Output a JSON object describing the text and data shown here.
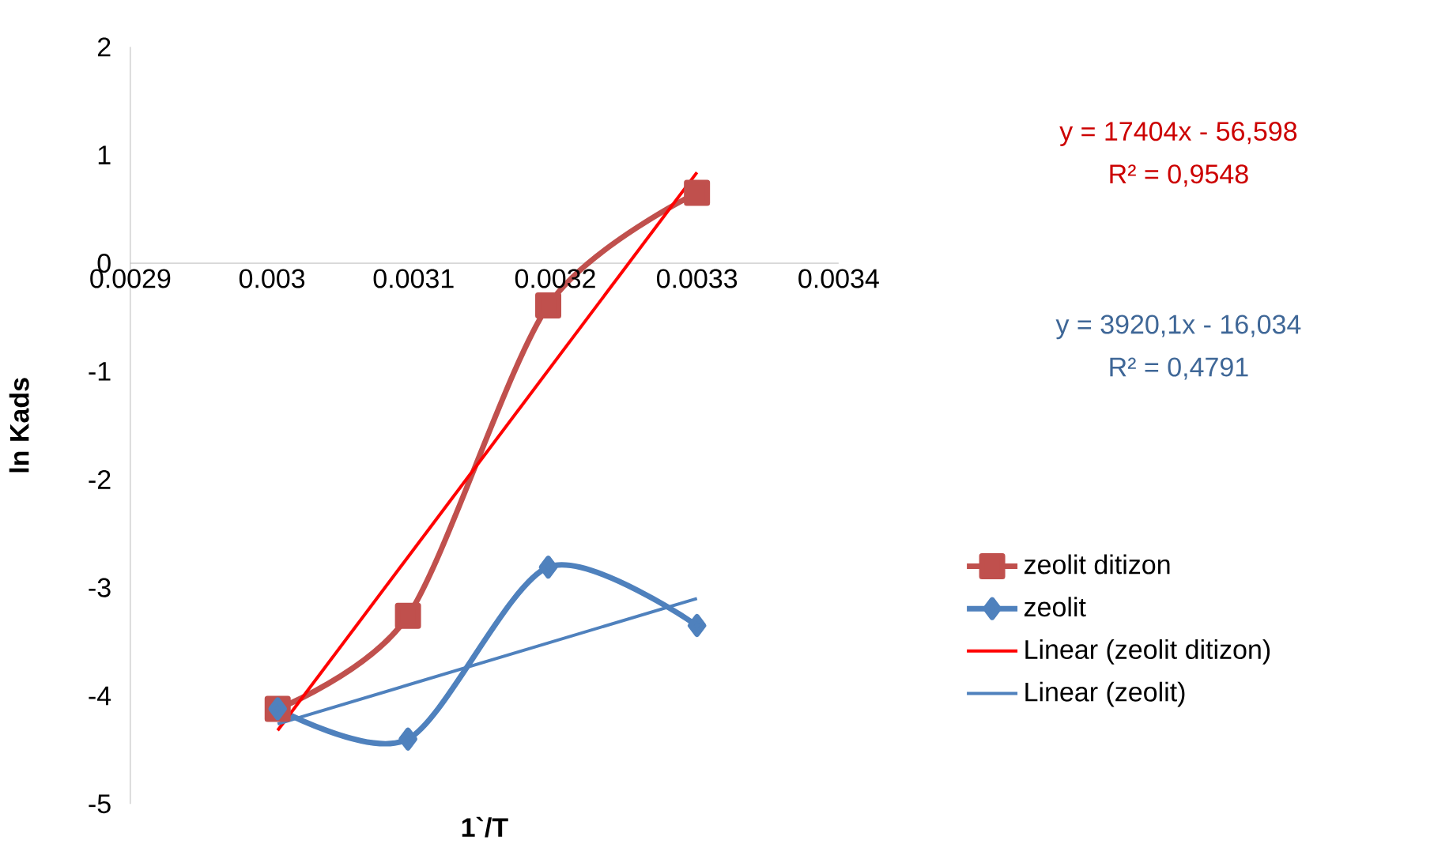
{
  "chart_data": {
    "type": "line",
    "xlabel": "1`/T",
    "ylabel": "ln Kads",
    "xlim": [
      0.0029,
      0.0034
    ],
    "ylim": [
      -5,
      2
    ],
    "xticks": [
      0.0029,
      0.003,
      0.0031,
      0.0032,
      0.0033,
      0.0034
    ],
    "yticks": [
      -5,
      -4,
      -3,
      -2,
      -1,
      0,
      1,
      2
    ],
    "legend": "right",
    "series": [
      {
        "name": "zeolit ditizon",
        "color": "#c0504d",
        "marker": "square",
        "x": [
          0.003004,
          0.003096,
          0.003195,
          0.0033
        ],
        "values": [
          -4.12,
          -3.26,
          -0.39,
          0.65
        ]
      },
      {
        "name": "zeolit",
        "color": "#4f81bd",
        "marker": "diamond",
        "x": [
          0.003004,
          0.003096,
          0.003195,
          0.0033
        ],
        "values": [
          -4.12,
          -4.4,
          -2.81,
          -3.35
        ]
      },
      {
        "name": "Linear (zeolit ditizon)",
        "color": "#ff0000",
        "marker": "none",
        "x": [
          0.003004,
          0.0033
        ],
        "values": [
          -4.32,
          0.84
        ]
      },
      {
        "name": "Linear (zeolit)",
        "color": "#4f81bd",
        "marker": "none",
        "x": [
          0.003004,
          0.0033
        ],
        "values": [
          -4.26,
          -3.1
        ]
      }
    ],
    "annotations": [
      "y = 17404x - 56,598",
      "R² = 0,9548",
      "y = 3920,1x - 16,034",
      "R² = 0,4791"
    ]
  }
}
